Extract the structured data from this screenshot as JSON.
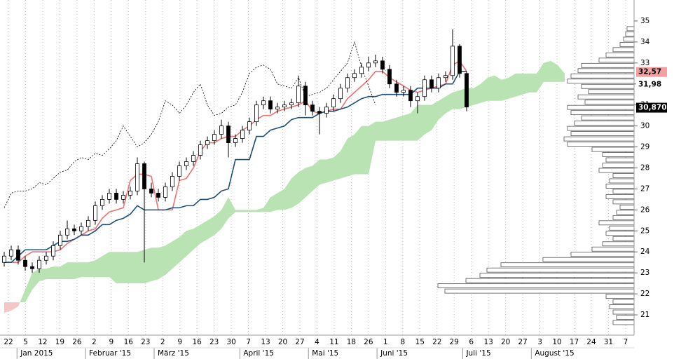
{
  "chart_data": {
    "type": "candlestick",
    "ylim": [
      20.3,
      36.0
    ],
    "yticks": [
      21,
      22,
      23,
      24,
      25,
      26,
      27,
      28,
      29,
      30,
      31,
      32,
      33,
      34,
      35
    ],
    "xticks": [
      "22",
      "5",
      "12",
      "19",
      "26",
      "2",
      "9",
      "16",
      "23",
      "2",
      "9",
      "16",
      "23",
      "30",
      "7",
      "13",
      "20",
      "27",
      "4",
      "11",
      "18",
      "26",
      "1",
      "8",
      "15",
      "22",
      "29",
      "6",
      "13",
      "20",
      "27",
      "3",
      "10",
      "17",
      "24",
      "31",
      "7"
    ],
    "month_labels": [
      null,
      "Jan 2015",
      null,
      null,
      null,
      "Februar '15",
      null,
      null,
      null,
      "März '15",
      null,
      null,
      null,
      null,
      "April '15",
      null,
      null,
      null,
      "Mai '15",
      null,
      null,
      null,
      "Juni '15",
      null,
      null,
      null,
      null,
      "Juli '15",
      null,
      null,
      null,
      "August '15",
      null,
      null,
      null,
      null,
      null
    ],
    "grid": true,
    "candle_color": "#000000",
    "ohlc": [
      [
        23.5,
        24.0,
        23.3,
        23.8
      ],
      [
        23.8,
        24.3,
        23.6,
        24.1
      ],
      [
        24.1,
        24.3,
        23.4,
        23.6
      ],
      [
        23.6,
        23.8,
        23.1,
        23.3
      ],
      [
        23.3,
        23.5,
        23.0,
        23.2
      ],
      [
        23.2,
        23.8,
        23.0,
        23.6
      ],
      [
        23.6,
        24.0,
        23.4,
        23.8
      ],
      [
        23.8,
        24.5,
        23.6,
        24.3
      ],
      [
        24.3,
        25.0,
        24.1,
        24.8
      ],
      [
        24.8,
        25.5,
        24.6,
        25.1
      ],
      [
        25.1,
        25.3,
        24.8,
        25.0
      ],
      [
        25.0,
        25.4,
        24.8,
        25.2
      ],
      [
        25.2,
        25.7,
        25.0,
        25.5
      ],
      [
        25.5,
        26.4,
        25.3,
        26.2
      ],
      [
        26.2,
        26.7,
        26.0,
        26.5
      ],
      [
        26.5,
        27.0,
        26.3,
        26.8
      ],
      [
        26.8,
        27.0,
        26.3,
        26.5
      ],
      [
        26.5,
        26.9,
        26.3,
        26.7
      ],
      [
        26.7,
        27.1,
        26.5,
        26.9
      ],
      [
        26.9,
        28.5,
        26.7,
        28.2
      ],
      [
        28.2,
        28.3,
        23.5,
        27.0
      ],
      [
        27.0,
        27.3,
        26.6,
        26.8
      ],
      [
        26.8,
        27.0,
        26.4,
        26.6
      ],
      [
        26.6,
        27.3,
        26.4,
        27.1
      ],
      [
        27.1,
        27.8,
        26.9,
        27.6
      ],
      [
        27.6,
        28.3,
        27.4,
        28.1
      ],
      [
        28.1,
        28.5,
        27.9,
        28.3
      ],
      [
        28.3,
        28.8,
        28.1,
        28.6
      ],
      [
        28.6,
        29.3,
        28.4,
        29.1
      ],
      [
        29.1,
        29.5,
        28.9,
        29.3
      ],
      [
        29.3,
        29.8,
        29.1,
        29.6
      ],
      [
        29.6,
        30.3,
        29.4,
        30.0
      ],
      [
        30.0,
        30.2,
        28.5,
        29.2
      ],
      [
        29.2,
        29.6,
        29.0,
        29.4
      ],
      [
        29.4,
        30.0,
        29.2,
        29.8
      ],
      [
        29.8,
        30.4,
        29.6,
        30.2
      ],
      [
        30.2,
        31.2,
        30.0,
        31.0
      ],
      [
        31.0,
        31.4,
        30.8,
        31.2
      ],
      [
        31.2,
        31.4,
        30.6,
        30.8
      ],
      [
        30.8,
        31.1,
        30.6,
        30.9
      ],
      [
        30.9,
        31.2,
        30.7,
        31.0
      ],
      [
        31.0,
        31.3,
        30.8,
        31.1
      ],
      [
        31.1,
        32.4,
        30.9,
        31.9
      ],
      [
        31.9,
        32.1,
        30.5,
        31.0
      ],
      [
        31.0,
        31.2,
        30.5,
        30.7
      ],
      [
        30.7,
        30.9,
        29.6,
        30.6
      ],
      [
        30.6,
        31.1,
        30.4,
        30.9
      ],
      [
        30.9,
        31.5,
        30.7,
        31.3
      ],
      [
        31.3,
        32.0,
        31.1,
        31.8
      ],
      [
        31.8,
        32.5,
        31.6,
        32.3
      ],
      [
        32.3,
        32.7,
        32.1,
        32.5
      ],
      [
        32.5,
        33.0,
        32.3,
        32.8
      ],
      [
        32.8,
        33.3,
        32.6,
        33.0
      ],
      [
        33.0,
        33.4,
        32.8,
        33.1
      ],
      [
        33.1,
        33.3,
        32.5,
        32.7
      ],
      [
        32.7,
        32.9,
        31.8,
        32.0
      ],
      [
        32.0,
        32.2,
        31.4,
        31.6
      ],
      [
        31.6,
        31.9,
        31.4,
        31.7
      ],
      [
        31.7,
        31.9,
        30.9,
        31.2
      ],
      [
        31.2,
        31.6,
        30.6,
        31.4
      ],
      [
        31.4,
        32.4,
        31.2,
        32.2
      ],
      [
        32.2,
        32.4,
        31.6,
        31.8
      ],
      [
        31.8,
        32.5,
        31.6,
        32.3
      ],
      [
        32.3,
        32.6,
        32.1,
        32.4
      ],
      [
        32.4,
        34.6,
        32.2,
        33.8
      ],
      [
        33.8,
        33.9,
        32.3,
        32.5
      ],
      [
        32.5,
        32.6,
        30.7,
        30.9
      ]
    ],
    "lines": [
      {
        "color": "#f07070",
        "dash": false,
        "values": [
          23.5,
          23.5,
          23.5,
          23.8,
          24.0,
          24.0,
          24.0,
          24.0,
          24.1,
          24.4,
          24.6,
          24.8,
          25.0,
          25.1,
          25.6,
          25.9,
          26.0,
          26.1,
          27.4,
          27.7,
          27.7,
          27.6,
          26.0,
          26.0,
          26.0,
          27.4,
          27.5,
          28.0,
          28.8,
          29.2,
          29.2,
          29.4,
          29.5,
          29.5,
          29.8,
          30.0,
          30.3,
          30.5,
          30.5,
          30.7,
          30.8,
          30.9,
          31.0,
          31.2,
          30.7,
          30.6,
          30.7,
          30.8,
          30.8,
          31.3,
          31.6,
          31.9,
          32.2,
          32.6,
          32.6,
          32.3,
          32.1,
          31.9,
          31.7,
          31.6,
          31.7,
          31.8,
          31.9,
          32.0,
          32.9,
          33.1,
          32.6
        ]
      },
      {
        "color": "#1a4f7a",
        "dash": false,
        "values": [
          23.5,
          23.5,
          23.8,
          24.1,
          24.1,
          24.1,
          24.1,
          24.3,
          24.5,
          24.5,
          24.6,
          24.8,
          24.8,
          25.0,
          25.3,
          25.3,
          25.5,
          25.6,
          25.8,
          26.2,
          26.0,
          26.0,
          26.0,
          26.0,
          26.1,
          26.1,
          26.2,
          26.2,
          26.5,
          26.5,
          26.6,
          26.9,
          27.0,
          28.4,
          28.4,
          28.4,
          29.5,
          29.5,
          29.8,
          29.9,
          30.0,
          30.3,
          30.4,
          30.4,
          30.4,
          30.6,
          30.7,
          30.7,
          30.8,
          30.9,
          31.1,
          31.3,
          31.4,
          31.4,
          31.5,
          31.5,
          31.5,
          31.5,
          31.5,
          31.8,
          31.8,
          31.8,
          31.8,
          32.0,
          32.0,
          32.6,
          32.6
        ]
      },
      {
        "color": "#000000",
        "dash": true,
        "values": [
          26.1,
          26.8,
          26.9,
          26.9,
          27.0,
          27.3,
          27.2,
          27.5,
          27.8,
          27.9,
          28.3,
          28.5,
          28.4,
          28.7,
          28.6,
          28.9,
          29.3,
          30.0,
          29.5,
          29.0,
          29.2,
          29.6,
          30.2,
          31.2,
          31.0,
          30.6,
          31.0,
          31.6,
          32.0,
          31.0,
          30.5,
          30.6,
          30.9,
          31.0,
          31.6,
          32.5,
          32.8,
          32.9,
          32.7,
          32.0,
          31.9,
          31.8,
          32.3,
          31.4,
          31.5,
          31.6,
          31.8,
          32.2,
          32.6,
          33.0,
          34.0,
          32.8,
          31.9,
          31.0
        ]
      }
    ],
    "cloud": {
      "up_color": "#b9e3b2",
      "down_color": "#f4c7c7",
      "span_a": [
        21.1,
        21.2,
        21.4,
        22.2,
        23.0,
        23.2,
        23.2,
        23.3,
        23.3,
        23.5,
        23.5,
        23.5,
        23.5,
        23.6,
        23.8,
        24.0,
        24.0,
        24.0,
        24.0,
        24.0,
        24.1,
        24.2,
        24.2,
        24.3,
        24.5,
        24.7,
        25.0,
        25.1,
        25.3,
        25.5,
        25.7,
        26.0,
        26.6,
        26.0,
        26.0,
        26.0,
        26.0,
        26.1,
        26.6,
        26.8,
        27.0,
        27.5,
        27.8,
        28.0,
        28.1,
        28.4,
        28.4,
        28.5,
        28.8,
        29.4,
        29.6,
        30.0,
        30.0,
        30.2,
        30.2,
        30.3,
        30.4,
        30.5,
        30.6,
        31.0,
        31.0,
        31.0,
        31.2,
        31.4,
        31.6,
        31.7,
        31.8,
        31.8,
        32.0,
        32.3,
        32.4,
        32.2,
        32.3,
        32.5,
        32.5,
        32.5,
        32.5,
        33.0,
        33.1,
        32.9,
        32.5
      ],
      "span_b": [
        21.6,
        21.6,
        21.6,
        21.6,
        22.2,
        22.6,
        22.7,
        22.7,
        22.7,
        22.7,
        22.7,
        22.8,
        22.8,
        22.8,
        22.8,
        22.8,
        22.5,
        22.5,
        22.5,
        22.5,
        22.5,
        22.6,
        22.7,
        22.9,
        23.2,
        23.5,
        23.8,
        24.1,
        24.4,
        24.6,
        24.8,
        25.1,
        25.6,
        25.9,
        25.9,
        25.9,
        25.9,
        25.9,
        25.9,
        26.0,
        26.0,
        26.1,
        26.3,
        26.6,
        26.9,
        27.2,
        27.3,
        27.4,
        27.5,
        27.6,
        27.7,
        27.7,
        27.7,
        29.3,
        29.3,
        29.3,
        29.3,
        29.3,
        29.3,
        29.3,
        29.6,
        29.8,
        30.3,
        30.6,
        30.8,
        30.8,
        30.9,
        31.0,
        31.1,
        31.2,
        31.2,
        31.2,
        31.3,
        31.4,
        31.5,
        31.6,
        31.6,
        32.1,
        32.1,
        32.1,
        32.1
      ]
    },
    "profile": {
      "color": "#555555",
      "xlim": [
        0,
        300
      ],
      "bins": [
        20.5,
        20.75,
        21.0,
        21.25,
        21.5,
        21.75,
        22.0,
        22.25,
        22.5,
        22.75,
        23.0,
        23.25,
        23.5,
        23.75,
        24.0,
        24.25,
        24.5,
        24.75,
        25.0,
        25.25,
        25.5,
        25.75,
        26.0,
        26.25,
        26.5,
        26.75,
        27.0,
        27.25,
        27.5,
        27.75,
        28.0,
        28.25,
        28.5,
        28.75,
        29.0,
        29.25,
        29.5,
        29.75,
        30.0,
        30.25,
        30.5,
        30.75,
        31.0,
        31.25,
        31.5,
        31.75,
        32.0,
        32.25,
        32.5,
        32.75,
        33.0,
        33.25,
        33.5,
        33.75,
        34.0,
        34.25,
        34.5,
        34.75
      ],
      "values": [
        30,
        25,
        30,
        35,
        30,
        40,
        270,
        280,
        240,
        220,
        210,
        190,
        130,
        90,
        60,
        45,
        30,
        40,
        35,
        50,
        30,
        25,
        20,
        30,
        40,
        30,
        40,
        35,
        30,
        50,
        45,
        40,
        45,
        60,
        95,
        100,
        90,
        95,
        85,
        75,
        90,
        95,
        70,
        80,
        65,
        75,
        95,
        90,
        80,
        75,
        50,
        40,
        30,
        20,
        15,
        12,
        10
      ]
    },
    "price_labels": [
      {
        "value": 32.57,
        "label": "32,57",
        "fill": "#f4a0a0",
        "text_color": "#000000"
      },
      {
        "value": 31.98,
        "label": "31,98",
        "fill": "#ffffff",
        "text_color": "#000000"
      },
      {
        "value": 30.87,
        "label": "30,870",
        "fill": "#000000",
        "text_color": "#ffffff"
      }
    ]
  }
}
